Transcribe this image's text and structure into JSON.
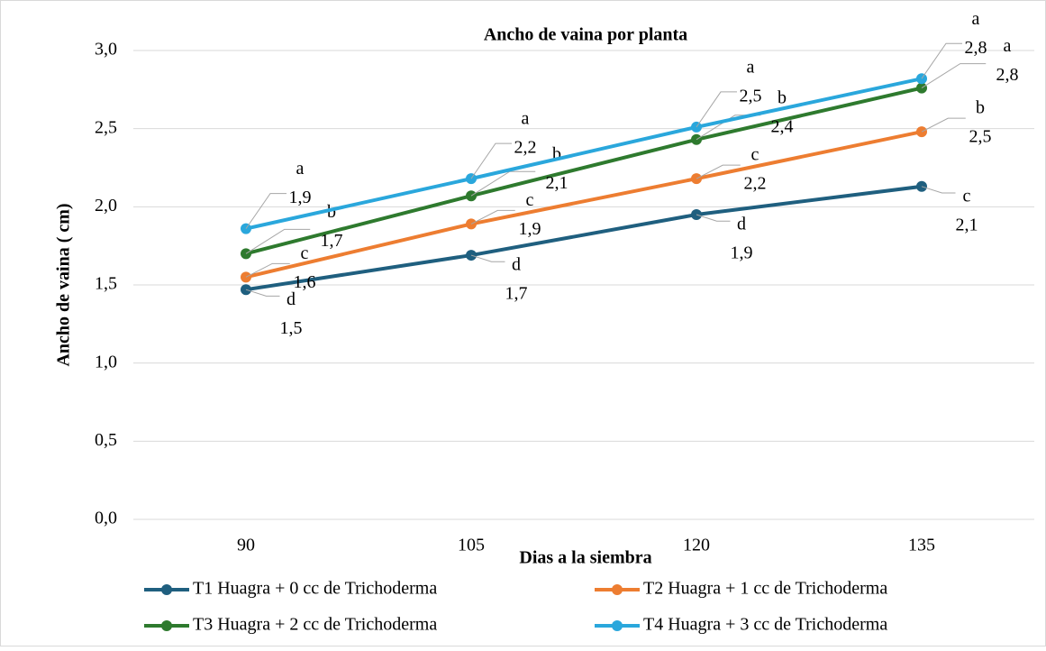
{
  "chart_data": {
    "type": "line",
    "title": "Ancho de vaina por planta",
    "x_label": "Dias a la siembra",
    "y_label": "Ancho de vaina ( cm)",
    "categories": [
      "90",
      "105",
      "120",
      "135"
    ],
    "series": [
      {
        "name": "T1  Huagra + 0 cc de Trichoderma",
        "color": "#1f5f7f",
        "values": [
          1.47,
          1.69,
          1.95,
          2.13
        ],
        "value_labels": [
          "1,5",
          "1,7",
          "1,9",
          "2,1"
        ],
        "letters": [
          "d",
          "d",
          "d",
          "c"
        ]
      },
      {
        "name": "T2  Huagra + 1 cc de Trichoderma",
        "color": "#ed7d31",
        "values": [
          1.55,
          1.89,
          2.18,
          2.48
        ],
        "value_labels": [
          "1,6",
          "1,9",
          "2,2",
          "2,5"
        ],
        "letters": [
          "c",
          "c",
          "c",
          "b"
        ]
      },
      {
        "name": "T3  Huagra + 2 cc de Trichoderma",
        "color": "#2e7a2e",
        "values": [
          1.7,
          2.07,
          2.43,
          2.76
        ],
        "value_labels": [
          "1,7",
          "2,1",
          "2,4",
          "2,8"
        ],
        "letters": [
          "b",
          "b",
          "b",
          "a"
        ]
      },
      {
        "name": "T4  Huagra + 3 cc de Trichoderma",
        "color": "#2aa7dc",
        "values": [
          1.86,
          2.18,
          2.51,
          2.82
        ],
        "value_labels": [
          "1,9",
          "2,2",
          "2,5",
          "2,8"
        ],
        "letters": [
          "a",
          "a",
          "a",
          "a"
        ]
      }
    ],
    "ylim": [
      0,
      3
    ],
    "yticks": [
      {
        "value": 0,
        "label": "0,0"
      },
      {
        "value": 0.5,
        "label": "0,5"
      },
      {
        "value": 1,
        "label": "1,0"
      },
      {
        "value": 1.5,
        "label": "1,5"
      },
      {
        "value": 2,
        "label": "2,0"
      },
      {
        "value": 2.5,
        "label": "2,5"
      },
      {
        "value": 3,
        "label": "3,0"
      }
    ],
    "grid": true,
    "legend": "bottom"
  }
}
